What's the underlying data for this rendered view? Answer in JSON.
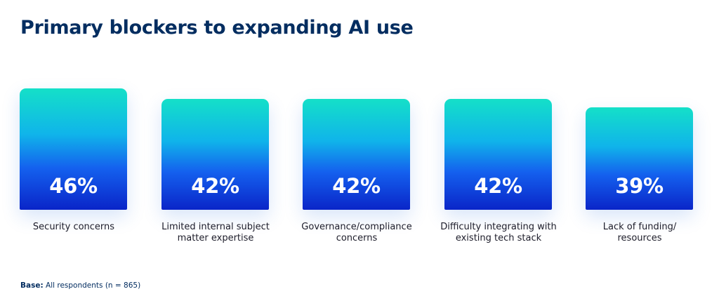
{
  "chart_data": {
    "type": "bar",
    "title": "Primary blockers to expanding AI use",
    "categories": [
      "Security concerns",
      "Limited internal subject matter expertise",
      "Governance/compliance concerns",
      "Difficulty integrating with existing tech stack",
      "Lack of funding/ resources"
    ],
    "label_lines": [
      [
        "Security concerns"
      ],
      [
        "Limited internal subject",
        "matter expertise"
      ],
      [
        "Governance/compliance",
        "concerns"
      ],
      [
        "Difficulty integrating with",
        "existing tech stack"
      ],
      [
        "Lack of funding/",
        "resources"
      ]
    ],
    "values": [
      46,
      42,
      42,
      42,
      39
    ],
    "value_labels": [
      "46%",
      "42%",
      "42%",
      "42%",
      "39%"
    ],
    "unit": "%",
    "grid": false,
    "legend": "none",
    "colors": {
      "bar_top": "#14e0c8",
      "bar_mid": "#1460ee",
      "bar_bottom": "#0a25c8",
      "title": "#032d60"
    }
  },
  "footnote": {
    "label": "Base:",
    "text": " All respondents (n = 865)"
  }
}
